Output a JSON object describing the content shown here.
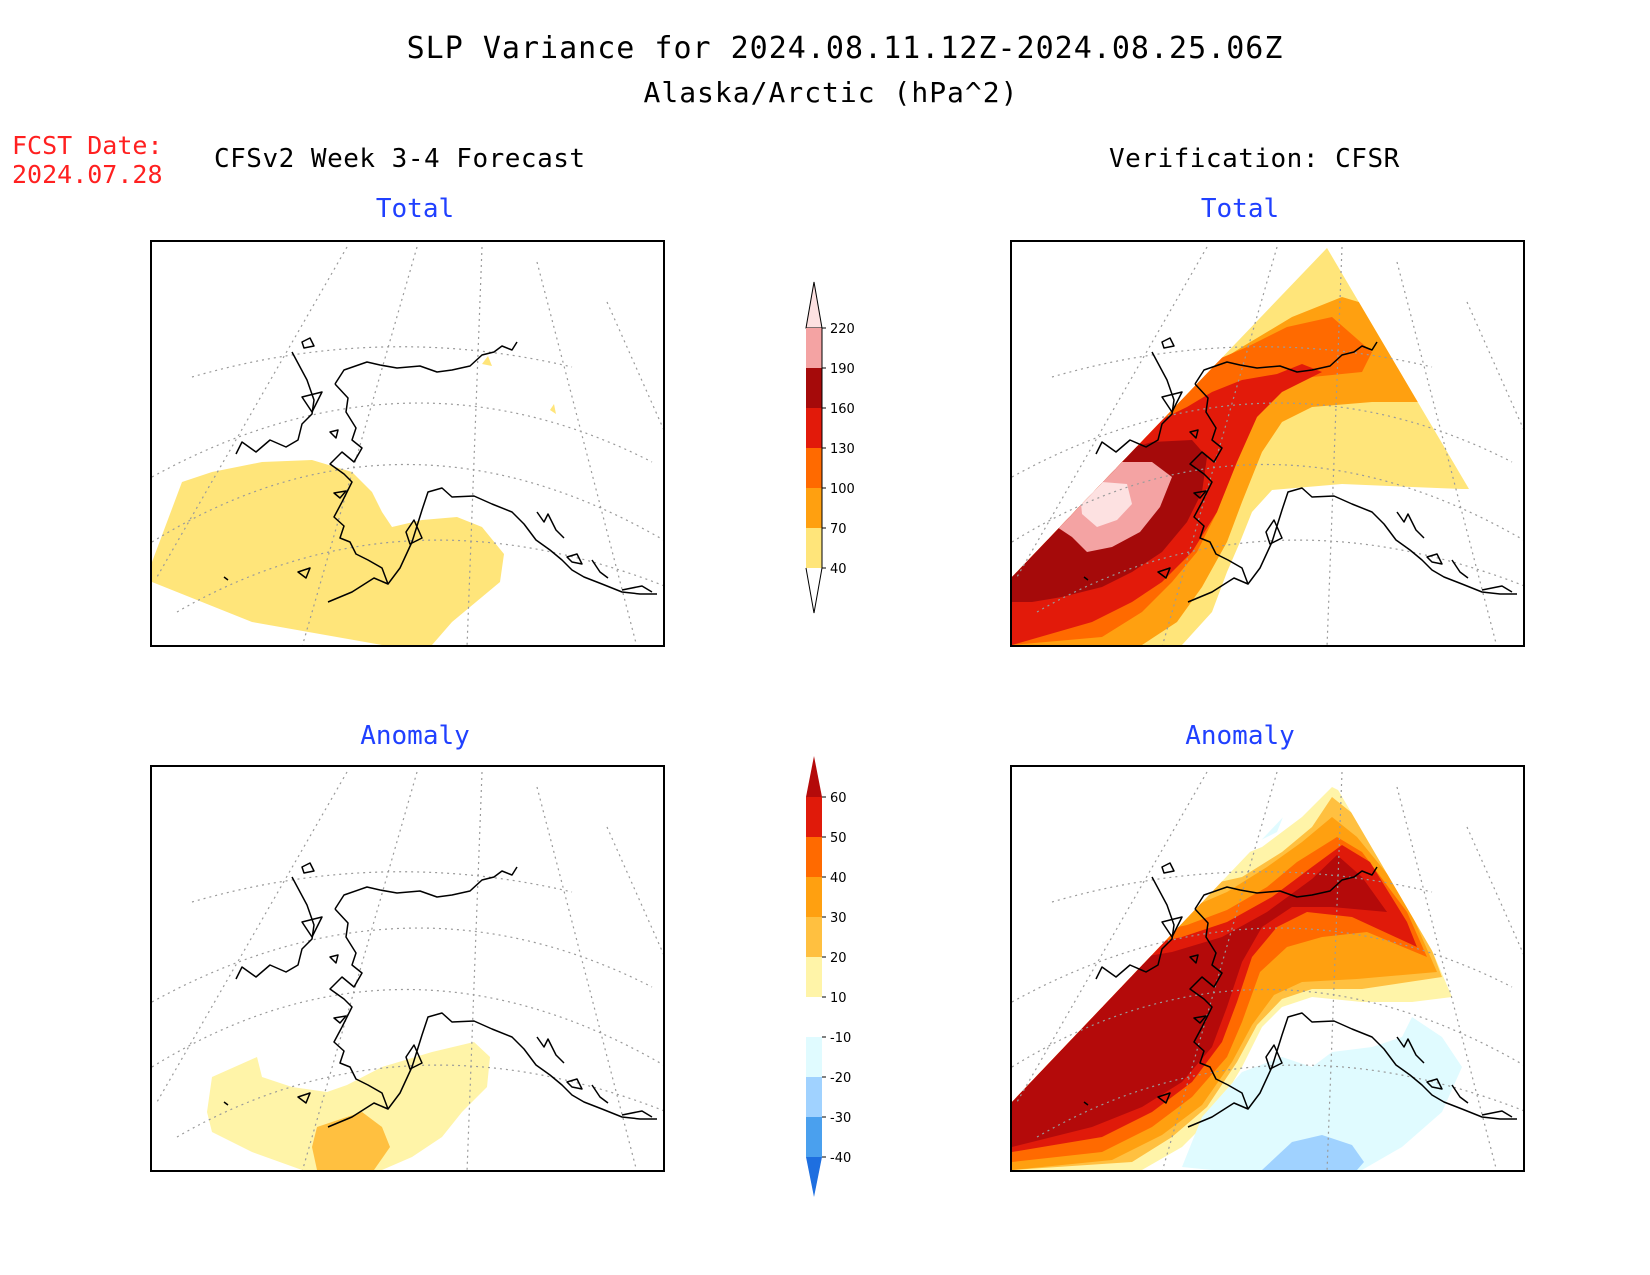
{
  "title": {
    "line1": "SLP Variance for 2024.08.11.12Z-2024.08.25.06Z",
    "line2": "Alaska/Arctic (hPa^2)"
  },
  "forecast_date": {
    "label": "FCST Date:",
    "value": "2024.07.28"
  },
  "columns": {
    "left": "CFSv2 Week 3-4 Forecast",
    "right": "Verification: CFSR"
  },
  "panels": {
    "forecast_total": "Total",
    "verification_total": "Total",
    "forecast_anomaly": "Anomaly",
    "verification_anomaly": "Anomaly"
  },
  "legends": {
    "total": {
      "levels": [
        "220",
        "190",
        "160",
        "130",
        "100",
        "70",
        "40"
      ],
      "colors": [
        "#fde1e1",
        "#f4a3a3",
        "#a50a0a",
        "#e21a0a",
        "#ff6a00",
        "#ffa010",
        "#ffe57a"
      ]
    },
    "anomaly": {
      "levels": [
        "60",
        "50",
        "40",
        "30",
        "20",
        "10",
        "-10",
        "-20",
        "-30",
        "-40"
      ],
      "colors": [
        "#b40a0a",
        "#e01a0a",
        "#ff6a00",
        "#ffa010",
        "#ffc040",
        "#fff4a8",
        "#ffffff",
        "#e0fbff",
        "#a0d2ff",
        "#4aa0ee",
        "#1e6fe0"
      ]
    }
  }
}
